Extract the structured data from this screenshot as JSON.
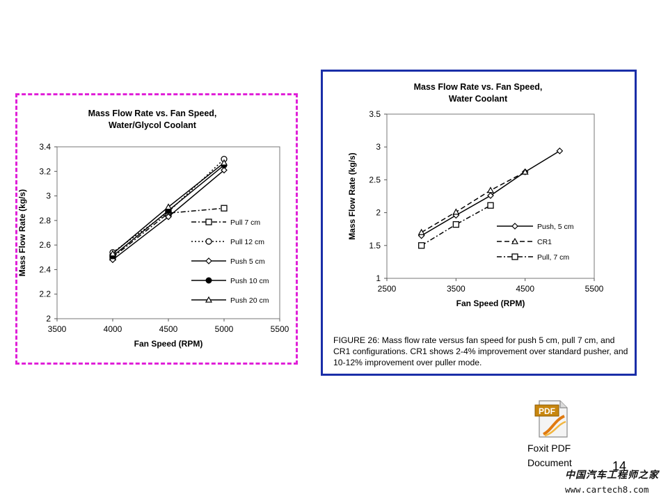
{
  "chart_data": [
    {
      "type": "line",
      "title": [
        "Mass Flow Rate vs. Fan Speed,",
        "Water/Glycol Coolant"
      ],
      "xlabel": "Fan Speed (RPM)",
      "ylabel": "Mass Flow Rate (kg/s)",
      "xlim": [
        3500,
        5500
      ],
      "ylim": [
        2,
        3.4
      ],
      "xticks": [
        3500,
        4000,
        4500,
        5000,
        5500
      ],
      "yticks": [
        2,
        2.2,
        2.4,
        2.6,
        2.8,
        3,
        3.2,
        3.4
      ],
      "ytick_labels": [
        "2",
        "2.2",
        "2.4",
        "2.6",
        "2.8",
        "3",
        "3.2",
        "3.4"
      ],
      "grid": false,
      "legend_position": "right",
      "series": [
        {
          "name": "Pull 7 cm",
          "x": [
            4000,
            4500,
            5000
          ],
          "values": [
            2.5,
            2.86,
            2.9
          ],
          "marker": "square",
          "dash": "dashdot"
        },
        {
          "name": "Pull 12 cm",
          "x": [
            4000,
            4500,
            5000
          ],
          "values": [
            2.54,
            2.87,
            3.3
          ],
          "marker": "circle-open",
          "dash": "dotted"
        },
        {
          "name": "Push 5 cm",
          "x": [
            4000,
            4500,
            5000
          ],
          "values": [
            2.48,
            2.83,
            3.21
          ],
          "marker": "diamond",
          "dash": "solid"
        },
        {
          "name": "Push 10 cm",
          "x": [
            4000,
            4500,
            5000
          ],
          "values": [
            2.51,
            2.88,
            3.25
          ],
          "marker": "circle-filled",
          "dash": "solid"
        },
        {
          "name": "Push 20 cm",
          "x": [
            4000,
            4500,
            5000
          ],
          "values": [
            2.53,
            2.91,
            3.27
          ],
          "marker": "triangle",
          "dash": "solid"
        }
      ]
    },
    {
      "type": "line",
      "title": [
        "Mass Flow Rate vs. Fan Speed,",
        "Water Coolant"
      ],
      "xlabel": "Fan Speed (RPM)",
      "ylabel": "Mass Flow Rate (kg/s)",
      "xlim": [
        2500,
        5500
      ],
      "ylim": [
        1,
        3.5
      ],
      "xticks": [
        2500,
        3500,
        4500,
        5500
      ],
      "yticks": [
        1,
        1.5,
        2,
        2.5,
        3,
        3.5
      ],
      "ytick_labels": [
        "1",
        "1.5",
        "2",
        "2.5",
        "3",
        "3.5"
      ],
      "grid": false,
      "legend_position": "right",
      "series": [
        {
          "name": "Push, 5 cm",
          "x": [
            3000,
            3500,
            4000,
            4500,
            5000
          ],
          "values": [
            1.65,
            1.96,
            2.26,
            2.62,
            2.94
          ],
          "marker": "diamond",
          "dash": "solid"
        },
        {
          "name": "CR1",
          "x": [
            3000,
            3500,
            4000,
            4500
          ],
          "values": [
            1.7,
            2.01,
            2.34,
            2.62
          ],
          "marker": "triangle",
          "dash": "dashed"
        },
        {
          "name": "Pull, 7 cm",
          "x": [
            3000,
            3500,
            4000
          ],
          "values": [
            1.5,
            1.82,
            2.11
          ],
          "marker": "square",
          "dash": "dashdot"
        }
      ]
    }
  ],
  "caption": "FIGURE 26: Mass flow rate versus fan speed for push 5 cm, pull 7 cm, and CR1 configurations. CR1 shows 2-4% improvement over standard pusher, and 10-12% improvement over puller mode.",
  "attachment": {
    "icon": "pdf-file-icon",
    "icon_text": "PDF",
    "label_line1": "Foxit PDF",
    "label_line2": "Document"
  },
  "page_number": "14",
  "watermark": {
    "cn": "中国汽车工程师之家",
    "url": "www.cartech8.com"
  }
}
